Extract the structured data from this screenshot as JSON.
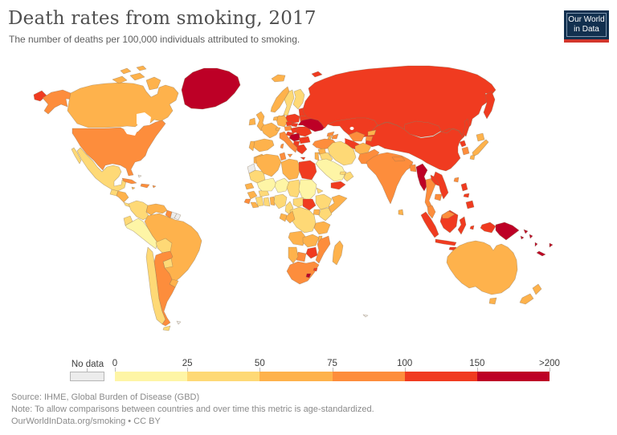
{
  "header": {
    "title": "Death rates from smoking, 2017",
    "subtitle": "The number of deaths per 100,000 individuals attributed to smoking."
  },
  "logo": {
    "line1": "Our World",
    "line2": "in Data",
    "bg_color": "#12304f",
    "accent_color": "#d2362c"
  },
  "legend": {
    "no_data_label": "No data",
    "no_data_color": "#ececec",
    "ticks": [
      "0",
      "25",
      "50",
      "75",
      "100",
      "150",
      ">200"
    ],
    "bins": [
      {
        "range": "0–25",
        "color": "#fef5a6"
      },
      {
        "range": "25–50",
        "color": "#fed976"
      },
      {
        "range": "50–75",
        "color": "#feb24c"
      },
      {
        "range": "75–100",
        "color": "#fd8d3c"
      },
      {
        "range": "100–150",
        "color": "#f03b20"
      },
      {
        "range": "150–>200",
        "color": "#bd0026"
      }
    ]
  },
  "footer": {
    "source": "Source: IHME, Global Burden of Disease (GBD)",
    "note": "Note: To allow comparisons between countries and over time this metric is age-standardized.",
    "link": "OurWorldInData.org/smoking • CC BY"
  },
  "chart_data": {
    "type": "choropleth_map",
    "title": "Death rates from smoking, 2017",
    "subtitle": "The number of deaths per 100,000 individuals attributed to smoking.",
    "unit": "deaths per 100,000 individuals",
    "year": 2017,
    "legend_position": "bottom",
    "bin_labels": [
      "0–25",
      "25–50",
      "50–75",
      "75–100",
      "100–150",
      "150–>200"
    ],
    "countries": {
      "Canada": 2,
      "United States": 3,
      "Mexico": 1,
      "Guatemala": 1,
      "Honduras": 2,
      "Panama": 1,
      "Cuba": 3,
      "Jamaica": 2,
      "Haiti": 3,
      "Puerto Rico": 3,
      "Bahamas": "nodata",
      "Greenland": 5,
      "Iceland": 2,
      "United Kingdom": 2,
      "Ireland": 2,
      "Norway": 2,
      "Sweden": 1,
      "Finland": 1,
      "Denmark": 2,
      "Germany": 2,
      "Netherlands": 2,
      "France": 2,
      "Spain": 2,
      "Portugal": 2,
      "Switzerland": 2,
      "Austria": 3,
      "Czechia": 4,
      "Slovakia": 4,
      "Hungary": 4,
      "Poland": 4,
      "Lithuania": 4,
      "Belarus": 4,
      "Ukraine": 5,
      "Moldova": 4,
      "Romania": 4,
      "Bulgaria": 4,
      "Croatia": 4,
      "Serbia": 5,
      "Albania": 4,
      "Greece": 4,
      "Italy": 3,
      "Russia": 4,
      "Kazakhstan": 4,
      "Mongolia": 4,
      "China": 4,
      "North Korea": 4,
      "South Korea": 3,
      "Japan": 2,
      "Taiwan": 3,
      "Philippines": 4,
      "Turkey": 3,
      "Georgia": 3,
      "Azerbaijan": 3,
      "Armenia": 2,
      "Syria": 2,
      "Jordan": 2,
      "Iraq": 1,
      "Iran": 1,
      "Saudi Arabia": 0,
      "Yemen": 4,
      "Oman": 1,
      "United Arab Emirates": 1,
      "Afghanistan": 2,
      "Pakistan": 3,
      "India": 3,
      "Nepal": 3,
      "Bangladesh": 3,
      "Sri Lanka": 2,
      "Myanmar": 5,
      "Thailand": 3,
      "Laos": 4,
      "Vietnam": 4,
      "Cambodia": 3,
      "Malaysia": 3,
      "Indonesia": 4,
      "Papua New Guinea": 5,
      "Solomon Islands": 5,
      "Vanuatu": 5,
      "Fiji": 5,
      "New Caledonia": 5,
      "Australia": 2,
      "New Zealand": 2,
      "Uzbekistan": 3,
      "Turkmenistan": 4,
      "Kyrgyzstan": 2,
      "Tajikistan": 3,
      "Morocco": 2,
      "Western Sahara": "nodata",
      "Algeria": 2,
      "Tunisia": 3,
      "Libya": 2,
      "Egypt": 4,
      "Mauritania": 1,
      "Mali": 0,
      "Niger": 0,
      "Chad": 1,
      "Sudan": 0,
      "South Sudan": 4,
      "Eritrea": 1,
      "Ethiopia": 1,
      "Somalia": 2,
      "Kenya": 1,
      "Uganda": 2,
      "Senegal": 2,
      "Guinea": 2,
      "Sierra Leone": 3,
      "Liberia": 2,
      "Ivory Coast": 1,
      "Ghana": 1,
      "Burkina Faso": 1,
      "Benin": 2,
      "Nigeria": 1,
      "Cameroon": 1,
      "Central African Republic": 1,
      "Democratic Republic of Congo": 1,
      "Congo": 2,
      "Gabon": 2,
      "Tanzania": 2,
      "Angola": 2,
      "Zambia": 2,
      "Malawi": 2,
      "Mozambique": 3,
      "Zimbabwe": 4,
      "Botswana": 3,
      "Namibia": 2,
      "South Africa": 3,
      "Lesotho": 5,
      "Eswatini": 4,
      "Madagascar": 2,
      "Colombia": 1,
      "Venezuela": 2,
      "Guyana": 3,
      "Suriname": "nodata",
      "French Guiana": "nodata",
      "Ecuador": 1,
      "Peru": 0,
      "Brazil": 2,
      "Bolivia": 1,
      "Paraguay": 1,
      "Chile": 1,
      "Argentina": 3,
      "Uruguay": 2,
      "Falkland Islands": "nodata",
      "French Southern Territories": "nodata"
    }
  }
}
